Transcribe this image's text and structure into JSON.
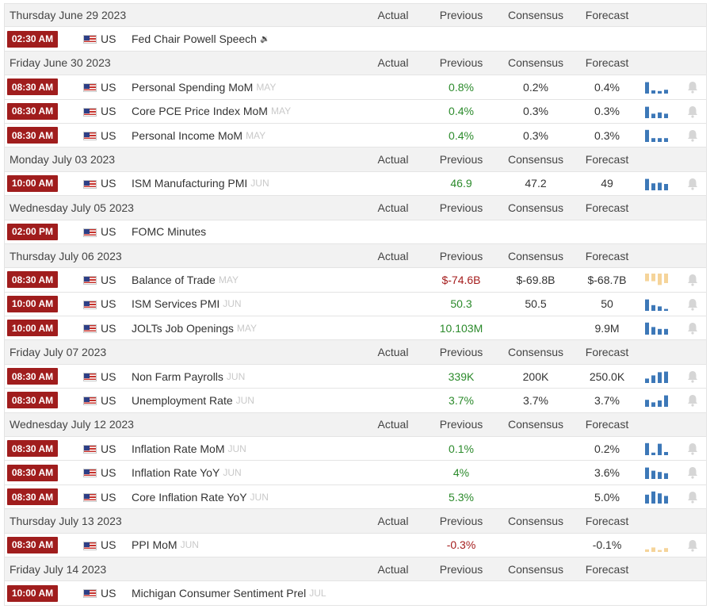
{
  "columns": {
    "actual": "Actual",
    "previous": "Previous",
    "consensus": "Consensus",
    "forecast": "Forecast"
  },
  "groups": [
    {
      "date": "Thursday June 29 2023",
      "events": [
        {
          "time": "02:30 AM",
          "country": "US",
          "name": "Fed Chair Powell Speech",
          "ref": "",
          "speech": true,
          "previous": "",
          "prev_dir": "neu",
          "consensus": "",
          "forecast": "",
          "chart": null
        }
      ]
    },
    {
      "date": "Friday June 30 2023",
      "events": [
        {
          "time": "08:30 AM",
          "country": "US",
          "name": "Personal Spending MoM",
          "ref": "MAY",
          "speech": false,
          "previous": "0.8%",
          "prev_dir": "pos",
          "consensus": "0.2%",
          "forecast": "0.4%",
          "chart": {
            "color": "#3d78b8",
            "values": [
              0.9,
              0.25,
              0.2,
              0.3
            ]
          }
        },
        {
          "time": "08:30 AM",
          "country": "US",
          "name": "Core PCE Price Index MoM",
          "ref": "MAY",
          "speech": false,
          "previous": "0.4%",
          "prev_dir": "pos",
          "consensus": "0.3%",
          "forecast": "0.3%",
          "chart": {
            "color": "#3d78b8",
            "values": [
              0.9,
              0.35,
              0.45,
              0.35
            ]
          }
        },
        {
          "time": "08:30 AM",
          "country": "US",
          "name": "Personal Income MoM",
          "ref": "MAY",
          "speech": false,
          "previous": "0.4%",
          "prev_dir": "pos",
          "consensus": "0.3%",
          "forecast": "0.3%",
          "chart": {
            "color": "#3d78b8",
            "values": [
              0.95,
              0.3,
              0.3,
              0.3
            ]
          }
        }
      ]
    },
    {
      "date": "Monday July 03 2023",
      "events": [
        {
          "time": "10:00 AM",
          "country": "US",
          "name": "ISM Manufacturing PMI",
          "ref": "JUN",
          "speech": false,
          "previous": "46.9",
          "prev_dir": "pos",
          "consensus": "47.2",
          "forecast": "49",
          "chart": {
            "color": "#3d78b8",
            "values": [
              0.9,
              0.55,
              0.6,
              0.5
            ]
          }
        }
      ]
    },
    {
      "date": "Wednesday July 05 2023",
      "events": [
        {
          "time": "02:00 PM",
          "country": "US",
          "name": "FOMC Minutes",
          "ref": "",
          "speech": false,
          "previous": "",
          "prev_dir": "neu",
          "consensus": "",
          "forecast": "",
          "chart": null
        }
      ]
    },
    {
      "date": "Thursday July 06 2023",
      "events": [
        {
          "time": "08:30 AM",
          "country": "US",
          "name": "Balance of Trade",
          "ref": "MAY",
          "speech": false,
          "previous": "$-74.6B",
          "prev_dir": "neg",
          "consensus": "$-69.8B",
          "forecast": "$-68.7B",
          "chart": {
            "color": "#f5d49a",
            "values": [
              0.6,
              0.6,
              0.9,
              0.75
            ],
            "from_top": true
          }
        },
        {
          "time": "10:00 AM",
          "country": "US",
          "name": "ISM Services PMI",
          "ref": "JUN",
          "speech": false,
          "previous": "50.3",
          "prev_dir": "pos",
          "consensus": "50.5",
          "forecast": "50",
          "chart": {
            "color": "#3d78b8",
            "values": [
              0.9,
              0.45,
              0.35,
              0.15
            ]
          }
        },
        {
          "time": "10:00 AM",
          "country": "US",
          "name": "JOLTs Job Openings",
          "ref": "MAY",
          "speech": false,
          "previous": "10.103M",
          "prev_dir": "pos",
          "consensus": "",
          "forecast": "9.9M",
          "chart": {
            "color": "#3d78b8",
            "values": [
              0.95,
              0.6,
              0.45,
              0.45
            ]
          }
        }
      ]
    },
    {
      "date": "Friday July 07 2023",
      "events": [
        {
          "time": "08:30 AM",
          "country": "US",
          "name": "Non Farm Payrolls",
          "ref": "JUN",
          "speech": false,
          "previous": "339K",
          "prev_dir": "pos",
          "consensus": "200K",
          "forecast": "250.0K",
          "chart": {
            "color": "#3d78b8",
            "values": [
              0.35,
              0.6,
              0.85,
              0.9
            ]
          }
        },
        {
          "time": "08:30 AM",
          "country": "US",
          "name": "Unemployment Rate",
          "ref": "JUN",
          "speech": false,
          "previous": "3.7%",
          "prev_dir": "pos",
          "consensus": "3.7%",
          "forecast": "3.7%",
          "chart": {
            "color": "#3d78b8",
            "values": [
              0.55,
              0.35,
              0.5,
              0.9
            ]
          }
        }
      ]
    },
    {
      "date": "Wednesday July 12 2023",
      "events": [
        {
          "time": "08:30 AM",
          "country": "US",
          "name": "Inflation Rate MoM",
          "ref": "JUN",
          "speech": false,
          "previous": "0.1%",
          "prev_dir": "pos",
          "consensus": "",
          "forecast": "0.2%",
          "chart": {
            "color": "#3d78b8",
            "values": [
              0.95,
              0.2,
              0.9,
              0.25
            ]
          }
        },
        {
          "time": "08:30 AM",
          "country": "US",
          "name": "Inflation Rate YoY",
          "ref": "JUN",
          "speech": false,
          "previous": "4%",
          "prev_dir": "pos",
          "consensus": "",
          "forecast": "3.6%",
          "chart": {
            "color": "#3d78b8",
            "values": [
              0.9,
              0.65,
              0.55,
              0.45
            ]
          }
        },
        {
          "time": "08:30 AM",
          "country": "US",
          "name": "Core Inflation Rate YoY",
          "ref": "JUN",
          "speech": false,
          "previous": "5.3%",
          "prev_dir": "pos",
          "consensus": "",
          "forecast": "5.0%",
          "chart": {
            "color": "#3d78b8",
            "values": [
              0.7,
              0.95,
              0.8,
              0.6
            ]
          }
        }
      ]
    },
    {
      "date": "Thursday July 13 2023",
      "events": [
        {
          "time": "08:30 AM",
          "country": "US",
          "name": "PPI MoM",
          "ref": "JUN",
          "speech": false,
          "previous": "-0.3%",
          "prev_dir": "neg",
          "consensus": "",
          "forecast": "-0.1%",
          "chart": {
            "color": "#f5d49a",
            "values": [
              0.2,
              0.35,
              0.15,
              0.3
            ],
            "from_top": false
          }
        }
      ]
    },
    {
      "date": "Friday July 14 2023",
      "events": [
        {
          "time": "10:00 AM",
          "country": "US",
          "name": "Michigan Consumer Sentiment Prel",
          "ref": "JUL",
          "speech": false,
          "previous": "",
          "prev_dir": "neu",
          "consensus": "",
          "forecast": "",
          "chart": null
        }
      ]
    }
  ]
}
